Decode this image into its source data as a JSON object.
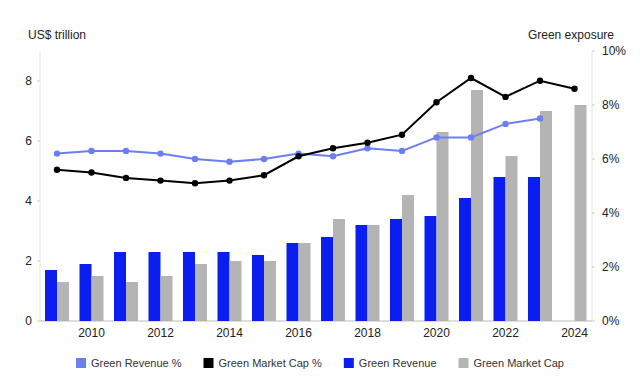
{
  "chart_data": {
    "type": "bar",
    "y_label": "US$ trillion",
    "y2_label": "Green exposure",
    "categories": [
      null,
      "2010",
      null,
      "2012",
      null,
      "2014",
      null,
      "2016",
      null,
      "2018",
      null,
      "2020",
      null,
      "2022",
      null,
      "2024"
    ],
    "series": [
      {
        "name": "Green Revenue %",
        "type": "line",
        "axis": "y2",
        "color": "#6b7ff0",
        "marker": "circle",
        "values": [
          6.2,
          6.3,
          6.3,
          6.2,
          6.0,
          5.9,
          6.0,
          6.2,
          6.1,
          6.4,
          6.3,
          6.8,
          6.8,
          7.3,
          7.5,
          null
        ]
      },
      {
        "name": "Green Market Cap %",
        "type": "line",
        "axis": "y2",
        "color": "#000000",
        "marker": "circle",
        "values": [
          5.6,
          5.5,
          5.3,
          5.2,
          5.1,
          5.2,
          5.4,
          6.1,
          6.4,
          6.6,
          6.9,
          8.1,
          9.0,
          8.3,
          8.9,
          8.6
        ]
      },
      {
        "name": "Green Revenue",
        "type": "bar",
        "color": "#0a1ef0",
        "values": [
          1.7,
          1.9,
          2.3,
          2.3,
          2.3,
          2.3,
          2.2,
          2.6,
          2.8,
          3.2,
          3.4,
          3.5,
          4.1,
          4.8,
          4.8,
          null
        ]
      },
      {
        "name": "Green Market Cap",
        "type": "bar",
        "color": "#b4b4b4",
        "values": [
          1.3,
          1.5,
          1.3,
          1.5,
          1.9,
          2.0,
          2.0,
          2.6,
          3.4,
          3.2,
          4.2,
          6.3,
          7.7,
          5.5,
          7.0,
          7.2
        ]
      }
    ],
    "ylim": [
      0,
      9
    ],
    "yticks": [
      0,
      2,
      4,
      6,
      8
    ],
    "y2lim": [
      0,
      10
    ],
    "y2ticks": [
      {
        "value": 0,
        "label": "0%"
      },
      {
        "value": 2,
        "label": "2%"
      },
      {
        "value": 4,
        "label": "4%"
      },
      {
        "value": 6,
        "label": "6%"
      },
      {
        "value": 8,
        "label": "8%"
      },
      {
        "value": 10,
        "label": "10%"
      }
    ],
    "grid": false,
    "legend": "bottom"
  }
}
